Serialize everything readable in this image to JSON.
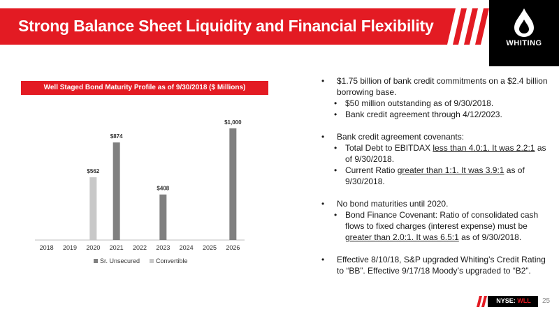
{
  "header": {
    "title": "Strong Balance Sheet Liquidity and Financial Flexibility",
    "logo_text": "WHITING"
  },
  "colors": {
    "brand_red": "#e31b23",
    "series_dark": "#808080",
    "series_light": "#c8c8c8"
  },
  "chart_data": {
    "type": "bar",
    "title": "Well Staged Bond Maturity Profile as of 9/30/2018 ($ Millions)",
    "categories": [
      "2018",
      "2019",
      "2020",
      "2021",
      "2022",
      "2023",
      "2024",
      "2025",
      "2026"
    ],
    "series": [
      {
        "name": "Sr. Unsecured",
        "values": [
          null,
          null,
          null,
          874,
          null,
          408,
          null,
          null,
          1000
        ],
        "labels": [
          "",
          "",
          "",
          "$874",
          "",
          "$408",
          "",
          "",
          "$1,000"
        ]
      },
      {
        "name": "Convertible",
        "values": [
          null,
          null,
          562,
          null,
          null,
          null,
          null,
          null,
          null
        ],
        "labels": [
          "",
          "",
          "$562",
          "",
          "",
          "",
          "",
          "",
          ""
        ]
      }
    ],
    "ylim": [
      0,
      1000
    ],
    "grid": false,
    "legend": "bottom"
  },
  "bullets": {
    "p1": "$1.75 billion of bank credit commitments on a $2.4 billion borrowing base.",
    "p1a": "$50 million outstanding as of 9/30/2018.",
    "p1b": "Bank credit agreement through 4/12/2023.",
    "p2": "Bank credit agreement covenants:",
    "p2a_pre": "Total Debt to EBITDAX ",
    "p2a_u": "less than 4.0:1. It was 2.2:1",
    "p2a_post": " as of 9/30/2018.",
    "p2b_pre": "Current Ratio ",
    "p2b_u": "greater than 1:1. It was 3.9:1",
    "p2b_post": " as of 9/30/2018.",
    "p3": "No bond maturities until 2020.",
    "p3a_pre": "Bond Finance Covenant: Ratio of consolidated cash flows to fixed charges (interest expense) must be ",
    "p3a_u": "greater than 2.0:1. It was 6.5:1",
    "p3a_post": " as of 9/30/2018.",
    "p4": "Effective 8/10/18, S&P upgraded Whiting’s Credit Rating to “BB”. Effective 9/17/18 Moody’s upgraded to “B2”."
  },
  "footer": {
    "exchange": "NYSE: ",
    "symbol": "WLL",
    "page": "25"
  }
}
